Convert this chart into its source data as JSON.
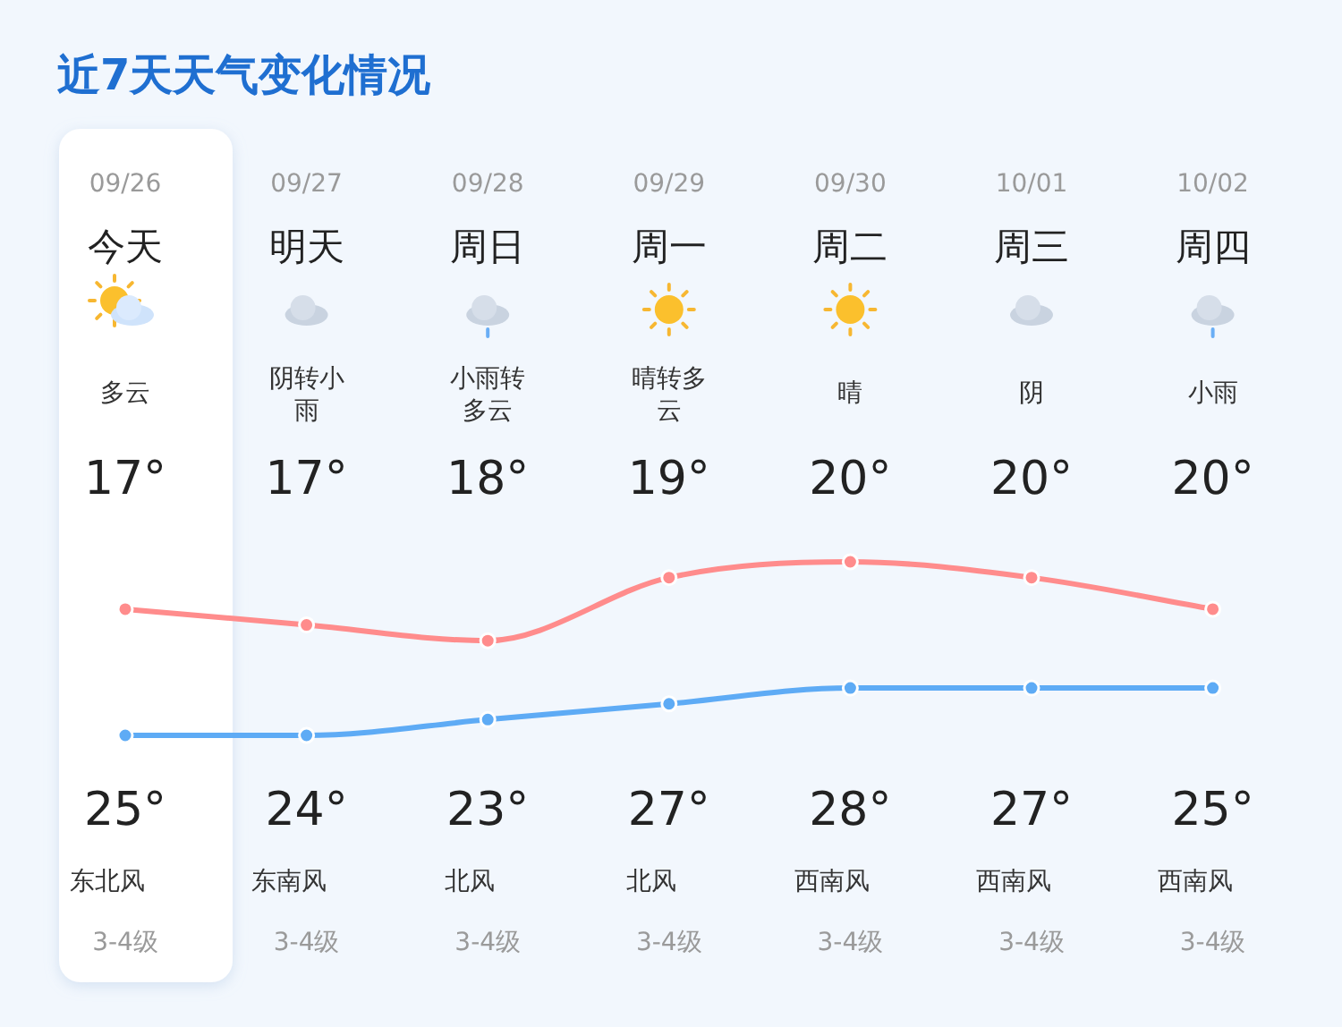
{
  "chart_data": {
    "type": "line",
    "title": "近7天天气变化情况",
    "categories": [
      "09/26",
      "09/27",
      "09/28",
      "09/29",
      "09/30",
      "10/01",
      "10/02"
    ],
    "series": [
      {
        "type": "line",
        "color": "#ff8c8c",
        "values": [
          25,
          24,
          23,
          27,
          28,
          27,
          25
        ],
        "value_labels": [
          "25°",
          "24°",
          "23°",
          "27°",
          "28°",
          "27°",
          "25°"
        ]
      },
      {
        "type": "line",
        "color": "#5eabf5",
        "values": [
          17,
          17,
          18,
          19,
          20,
          20,
          20
        ],
        "value_labels": [
          "17°",
          "17°",
          "18°",
          "19°",
          "20°",
          "20°",
          "20°"
        ]
      }
    ],
    "marker": "circle",
    "line_style": "solid",
    "grid": false,
    "annotations": [
      "今天",
      "明天",
      "周日",
      "周一",
      "周二",
      "周三",
      "周四",
      "多云",
      "阴转小雨",
      "小雨转多云",
      "晴转多云",
      "晴",
      "阴",
      "小雨",
      "东北风",
      "东南风",
      "北风",
      "北风",
      "西南风",
      "西南风",
      "西南风",
      "3-4级",
      "3-4级",
      "3-4级",
      "3-4级",
      "3-4级",
      "3-4级",
      "3-4级"
    ]
  }
}
